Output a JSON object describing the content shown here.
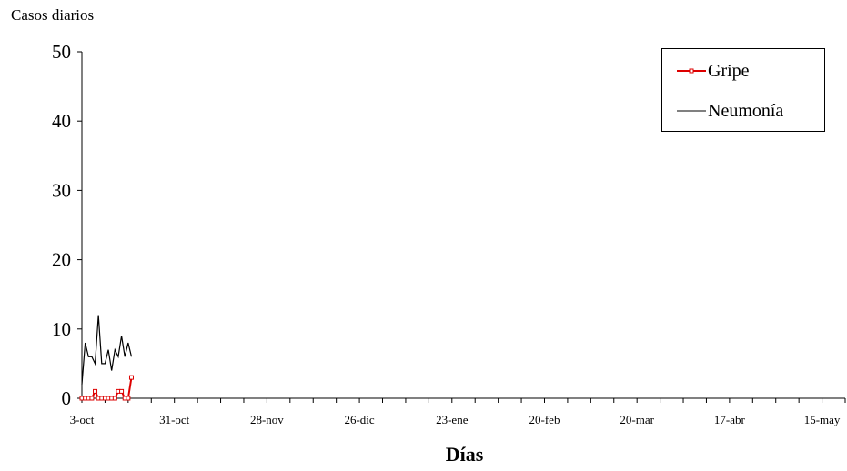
{
  "chart_data": {
    "type": "line",
    "ylabel": "Casos diarios",
    "xlabel": "Días",
    "ylim": [
      0,
      50
    ],
    "yticks": [
      0,
      10,
      20,
      30,
      40,
      50
    ],
    "xlim_day": [
      0,
      231
    ],
    "xticks": [
      {
        "day": 0,
        "label": "3-oct"
      },
      {
        "day": 28,
        "label": "31-oct"
      },
      {
        "day": 56,
        "label": "28-nov"
      },
      {
        "day": 84,
        "label": "26-dic"
      },
      {
        "day": 112,
        "label": "23-ene"
      },
      {
        "day": 140,
        "label": "20-feb"
      },
      {
        "day": 168,
        "label": "20-mar"
      },
      {
        "day": 196,
        "label": "17-abr"
      },
      {
        "day": 224,
        "label": "15-may"
      }
    ],
    "series": [
      {
        "name": "Gripe",
        "color": "#dd0000",
        "marker": "square",
        "x": [
          0,
          1,
          2,
          3,
          4,
          5,
          6,
          7,
          8,
          9,
          10,
          11,
          12,
          13,
          14,
          15
        ],
        "y": [
          0,
          0,
          0,
          0,
          1,
          0,
          0,
          0,
          0,
          0,
          0,
          1,
          1,
          0,
          0,
          3
        ]
      },
      {
        "name": "Neumonía",
        "color": "#000000",
        "marker": "none",
        "x": [
          0,
          1,
          2,
          3,
          4,
          5,
          6,
          7,
          8,
          9,
          10,
          11,
          12,
          13,
          14,
          15
        ],
        "y": [
          2,
          8,
          6,
          6,
          5,
          12,
          5,
          5,
          7,
          4,
          7,
          6,
          9,
          6,
          8,
          6
        ]
      }
    ],
    "legend_position": "top-right",
    "grid": false
  }
}
